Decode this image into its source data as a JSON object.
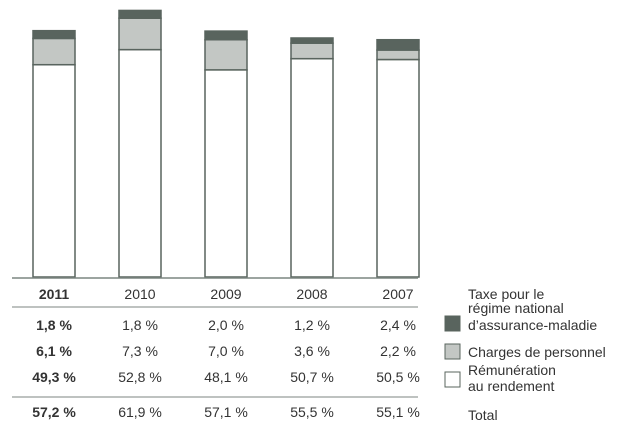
{
  "chart_data": {
    "type": "bar",
    "stacked": true,
    "categories": [
      "2011",
      "2010",
      "2009",
      "2008",
      "2007"
    ],
    "highlight_category": "2011",
    "series": [
      {
        "name": "Rémunération au rendement",
        "values": [
          49.3,
          52.8,
          48.1,
          50.7,
          50.5
        ],
        "labels": [
          "49,3 %",
          "52,8 %",
          "48,1 %",
          "50,7 %",
          "50,5 %"
        ],
        "color": "#ffffff"
      },
      {
        "name": "Charges de personnel",
        "values": [
          6.1,
          7.3,
          7.0,
          3.6,
          2.2
        ],
        "labels": [
          "6,1 %",
          "7,3 %",
          "7,0 %",
          "3,6 %",
          "2,2 %"
        ],
        "color": "#c3c7c4"
      },
      {
        "name": "Taxe pour le régime national d’assurance-maladie",
        "values": [
          1.8,
          1.8,
          2.0,
          1.2,
          2.4
        ],
        "labels": [
          "1,8 %",
          "1,8 %",
          "2,0 %",
          "1,2 %",
          "2,4 %"
        ],
        "color": "#59645e"
      }
    ],
    "totals": {
      "name": "Total",
      "values": [
        57.2,
        61.9,
        57.1,
        55.5,
        55.1
      ],
      "labels": [
        "57,2 %",
        "61,9 %",
        "57,1 %",
        "55,5 %",
        "55,1 %"
      ]
    },
    "ylim": [
      0,
      62
    ],
    "grid": false,
    "legend_position": "right"
  },
  "legend": {
    "line1": [
      "Taxe pour le",
      "régime national",
      "d’assurance-maladie"
    ],
    "line2": [
      "Charges de personnel"
    ],
    "line3": [
      "Rémunération",
      "au rendement"
    ],
    "line4": [
      "Total"
    ]
  },
  "colors": {
    "outline": "#59645e",
    "rule": "#7c8580",
    "text": "#333333"
  }
}
